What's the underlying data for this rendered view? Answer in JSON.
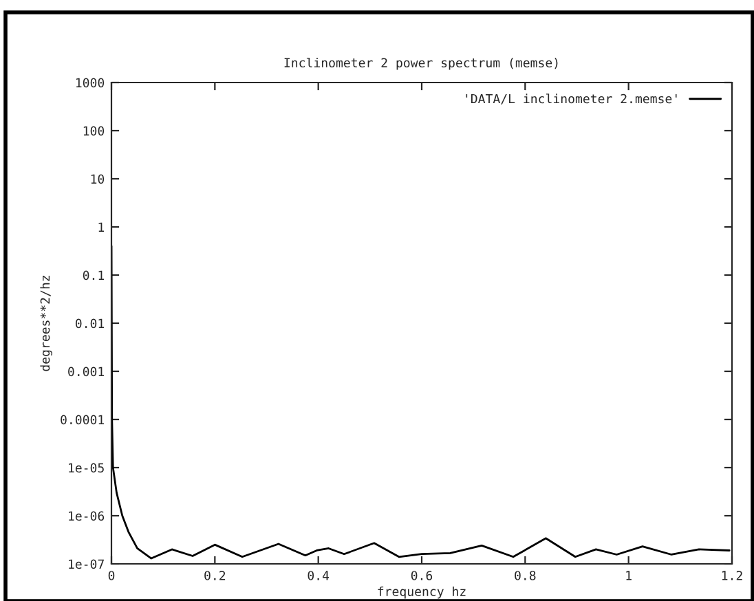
{
  "chart_data": {
    "type": "line",
    "title": "Inclinometer 2 power spectrum (memse)",
    "xlabel": "frequency hz",
    "ylabel": "degrees**2/hz",
    "series": [
      {
        "name": "'DATA/L inclinometer 2.memse'",
        "color": "#000000",
        "x": [
          0,
          0.001,
          0.003,
          0.01,
          0.021,
          0.033,
          0.05,
          0.077,
          0.117,
          0.157,
          0.2,
          0.253,
          0.323,
          0.375,
          0.397,
          0.42,
          0.45,
          0.508,
          0.556,
          0.6,
          0.655,
          0.716,
          0.777,
          0.84,
          0.897,
          0.937,
          0.977,
          1.027,
          1.083,
          1.136,
          1.195
        ],
        "values": [
          0.4,
          0.0001,
          1e-05,
          3e-06,
          1e-06,
          4.6e-07,
          2.1e-07,
          1.3e-07,
          2e-07,
          1.46e-07,
          2.5e-07,
          1.4e-07,
          2.6e-07,
          1.5e-07,
          1.9e-07,
          2.1e-07,
          1.6e-07,
          2.7e-07,
          1.4e-07,
          1.6e-07,
          1.67e-07,
          2.4e-07,
          1.4e-07,
          3.4e-07,
          1.4e-07,
          2e-07,
          1.56e-07,
          2.3e-07,
          1.56e-07,
          2e-07,
          1.9e-07
        ]
      }
    ],
    "log": "y",
    "xlim": [
      0,
      1.2
    ],
    "ylim": [
      1e-07,
      1000
    ],
    "xticks": [
      0,
      0.2,
      0.4,
      0.6,
      0.8,
      1,
      1.2
    ],
    "yticks": [
      {
        "value": 1e-07,
        "label": "1e-07"
      },
      {
        "value": 1e-06,
        "label": "1e-06"
      },
      {
        "value": 1e-05,
        "label": "1e-05"
      },
      {
        "value": 0.0001,
        "label": "0.0001"
      },
      {
        "value": 0.001,
        "label": "0.001"
      },
      {
        "value": 0.01,
        "label": "0.01"
      },
      {
        "value": 0.1,
        "label": "0.1"
      },
      1,
      10,
      100,
      1000
    ],
    "legend": "top right",
    "grid": false,
    "marker": "none",
    "line_style": "solid"
  }
}
